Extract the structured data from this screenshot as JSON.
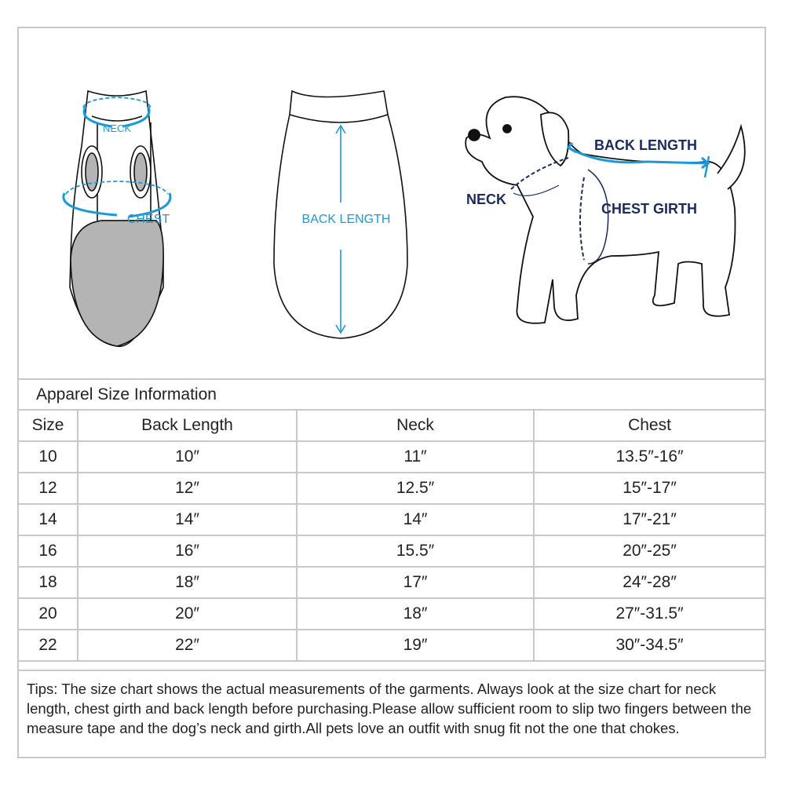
{
  "illustration": {
    "front_neck_label": "NECK",
    "front_chest_label": "CHEST",
    "back_length_label": "BACK LENGTH",
    "dog_back_length_label": "BACK LENGTH",
    "dog_neck_label": "NECK",
    "dog_chest_label": "CHEST GIRTH",
    "colors": {
      "measure_blue": "#1a9ad6",
      "dog_label_navy": "#1c2a5c",
      "panel_gray": "#b4b4b4"
    }
  },
  "table": {
    "title": "Apparel Size Information",
    "headers": [
      "Size",
      "Back Length",
      "Neck",
      "Chest"
    ],
    "rows": [
      [
        "10",
        "10″",
        "11″",
        "13.5″-16″"
      ],
      [
        "12",
        "12″",
        "12.5″",
        "15″-17″"
      ],
      [
        "14",
        "14″",
        "14″",
        "17″-21″"
      ],
      [
        "16",
        "16″",
        "15.5″",
        "20″-25″"
      ],
      [
        "18",
        "18″",
        "17″",
        "24″-28″"
      ],
      [
        "20",
        "20″",
        "18″",
        "27″-31.5″"
      ],
      [
        "22",
        "22″",
        "19″",
        "30″-34.5″"
      ]
    ]
  },
  "tips": "Tips:  The size chart shows the actual measurements of the  garments.  Always look at the size chart for neck length, chest girth and back length before purchasing.Please allow sufficient room to slip two fingers between the measure tape and the dog’s neck and girth.All pets love an outfit with snug fit not the one that chokes."
}
